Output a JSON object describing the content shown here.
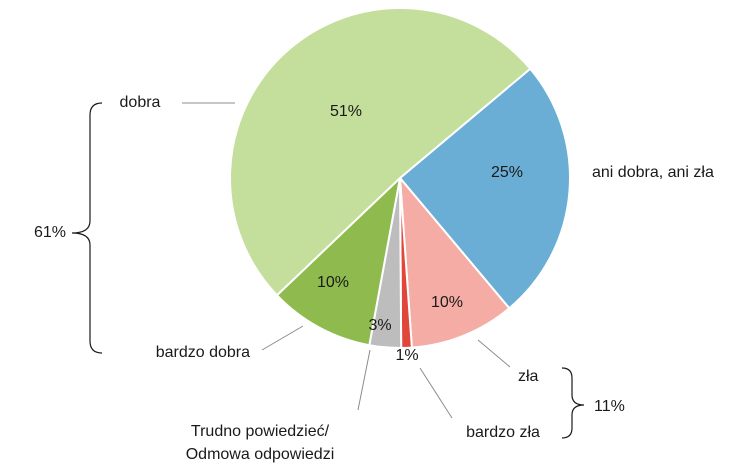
{
  "chart_data": {
    "type": "pie",
    "categories": [
      "ani dobra, ani zła",
      "zła",
      "bardzo zła",
      "Trudno powiedzieć/\nOdmowa odpowiedzi",
      "bardzo dobra",
      "dobra"
    ],
    "values": [
      25,
      10,
      1,
      3,
      10,
      51
    ],
    "value_labels": [
      "25%",
      "10%",
      "1%",
      "3%",
      "10%",
      "51%"
    ],
    "colors": [
      "#6aaed6",
      "#f4aca4",
      "#e0463a",
      "#bdbdbd",
      "#8fbb4e",
      "#c4de9b"
    ],
    "groups": [
      {
        "value": 61,
        "label": "61%"
      },
      {
        "value": 11,
        "label": "11%"
      }
    ]
  }
}
